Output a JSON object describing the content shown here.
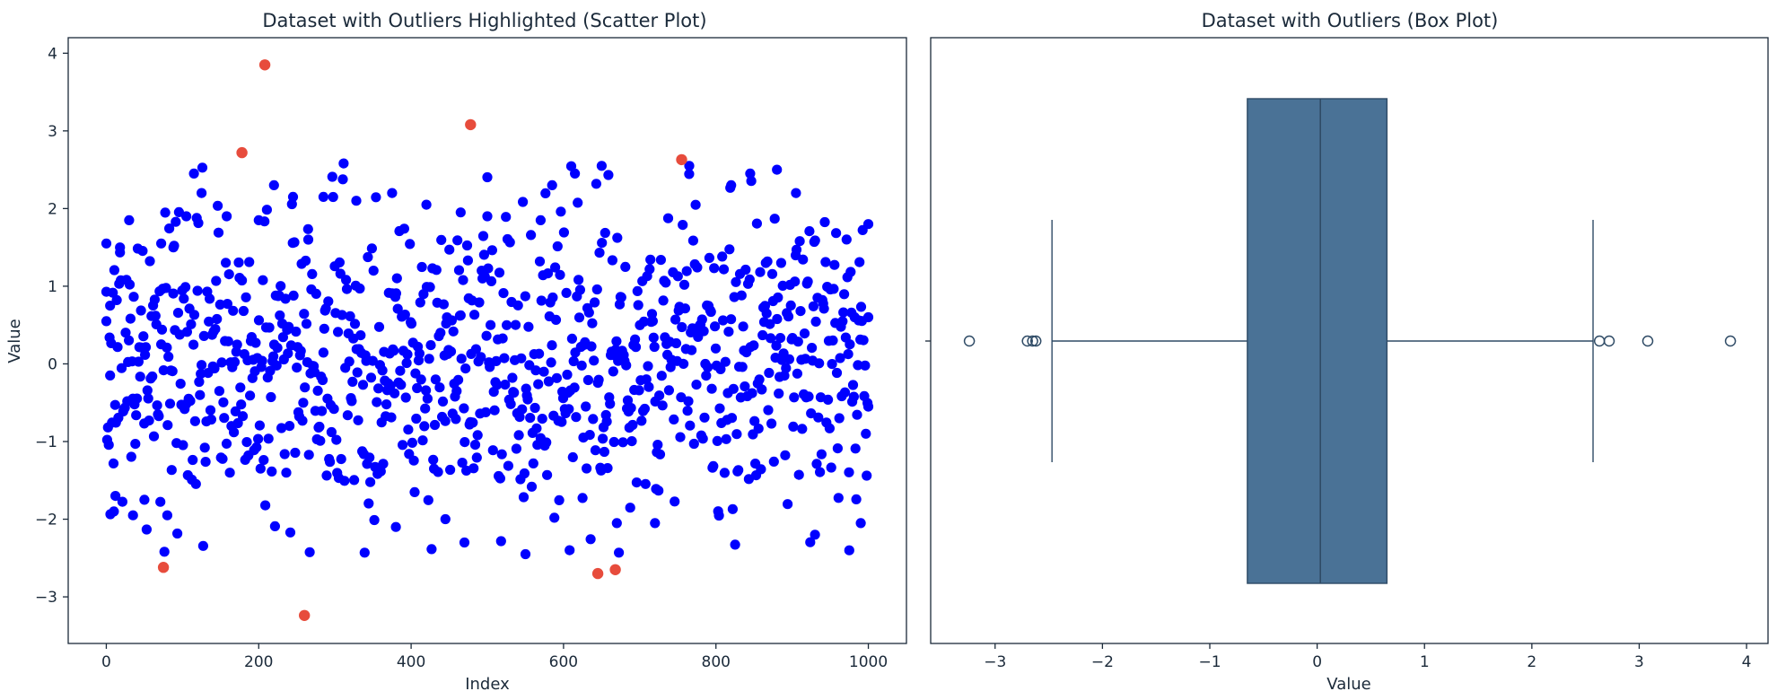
{
  "colors": {
    "normal_points": "#0000ff",
    "outlier_points": "#e74c3c",
    "box_fill": "#4a7296",
    "box_edge": "#2f4b66",
    "text": "#1b2a3a"
  },
  "chart_data": [
    {
      "type": "scatter",
      "title": "Dataset with Outliers Highlighted (Scatter Plot)",
      "xlabel": "Index",
      "ylabel": "Value",
      "xlim": [
        -50,
        1050
      ],
      "ylim": [
        -3.6,
        4.2
      ],
      "xticks": [
        0,
        200,
        400,
        600,
        800,
        1000
      ],
      "yticks": [
        -3,
        -2,
        -1,
        0,
        1,
        2,
        3,
        4
      ],
      "series": [
        {
          "role": "normal",
          "count": 992,
          "value_range": [
            -2.5,
            2.6
          ],
          "sample_points": [
            [
              0,
              1.55
            ],
            [
              0,
              0.55
            ],
            [
              5,
              0.75
            ],
            [
              5,
              -0.15
            ],
            [
              10,
              -1.9
            ],
            [
              12,
              -1.7
            ],
            [
              18,
              1.5
            ],
            [
              30,
              1.85
            ],
            [
              35,
              -1.95
            ],
            [
              50,
              -1.75
            ],
            [
              72,
              1.55
            ],
            [
              80,
              -1.95
            ],
            [
              88,
              1.5
            ],
            [
              105,
              1.9
            ],
            [
              115,
              2.45
            ],
            [
              125,
              2.2
            ],
            [
              158,
              1.9
            ],
            [
              200,
              1.85
            ],
            [
              220,
              2.3
            ],
            [
              245,
              2.15
            ],
            [
              265,
              1.6
            ],
            [
              285,
              2.15
            ],
            [
              328,
              2.1
            ],
            [
              375,
              2.2
            ],
            [
              380,
              -2.1
            ],
            [
              420,
              2.05
            ],
            [
              445,
              -2.0
            ],
            [
              465,
              1.95
            ],
            [
              470,
              -2.3
            ],
            [
              500,
              1.9
            ],
            [
              550,
              -2.45
            ],
            [
              570,
              1.85
            ],
            [
              585,
              2.3
            ],
            [
              615,
              2.45
            ],
            [
              650,
              2.55
            ],
            [
              670,
              -2.05
            ],
            [
              720,
              -2.05
            ],
            [
              765,
              2.55
            ],
            [
              820,
              2.3
            ],
            [
              845,
              2.45
            ],
            [
              880,
              2.5
            ],
            [
              905,
              2.2
            ],
            [
              930,
              -2.2
            ],
            [
              975,
              -2.4
            ],
            [
              990,
              -2.05
            ],
            [
              1000,
              1.8
            ],
            [
              1000,
              0.6
            ],
            [
              1000,
              -0.55
            ]
          ]
        },
        {
          "role": "outlier",
          "points": [
            [
              75,
              -2.62
            ],
            [
              178,
              2.72
            ],
            [
              208,
              3.85
            ],
            [
              260,
              -3.24
            ],
            [
              478,
              3.08
            ],
            [
              645,
              -2.7
            ],
            [
              668,
              -2.65
            ],
            [
              755,
              2.63
            ]
          ]
        }
      ]
    },
    {
      "type": "box",
      "title": "Dataset with Outliers (Box Plot)",
      "xlabel": "Value",
      "ylabel": "",
      "xlim": [
        -3.6,
        4.2
      ],
      "xticks": [
        -3,
        -2,
        -1,
        0,
        1,
        2,
        3,
        4
      ],
      "q1": -0.65,
      "median": 0.03,
      "q3": 0.65,
      "whisker_low": -2.47,
      "whisker_high": 2.57,
      "fliers": [
        -3.24,
        -2.7,
        -2.65,
        -2.62,
        2.63,
        2.72,
        3.08,
        3.85
      ]
    }
  ]
}
